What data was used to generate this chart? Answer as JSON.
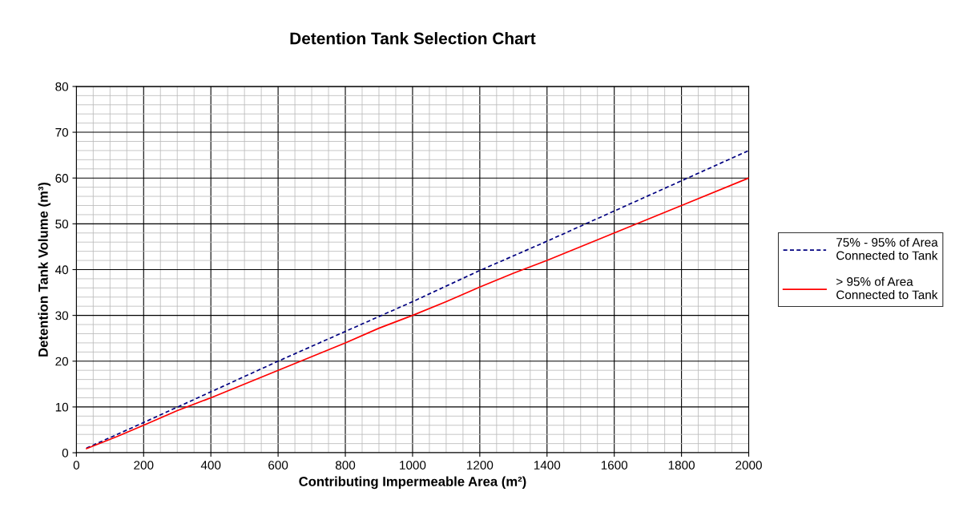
{
  "chart_data": {
    "type": "line",
    "title": "Detention Tank Selection Chart",
    "xlabel": "Contributing Impermeable Area (m²)",
    "ylabel": "Detention Tank Volume (m³)",
    "series": [
      {
        "name": "75% - 95% of Area\nConnected to Tank",
        "color": "#000080",
        "line_style": "dashed",
        "x": [
          30,
          200,
          400,
          600,
          800,
          1000,
          1200,
          1400,
          1500,
          1600,
          1800,
          2000
        ],
        "values": [
          1.0,
          6.6,
          13.3,
          20.0,
          26.5,
          33.0,
          39.8,
          46.2,
          49.5,
          52.8,
          59.4,
          66.0
        ]
      },
      {
        "name": "> 95% of Area\nConnected to Tank",
        "color": "#ff0000",
        "line_style": "solid",
        "x": [
          30,
          120,
          200,
          300,
          400,
          600,
          800,
          900,
          1000,
          1100,
          1200,
          1300,
          1400,
          1600,
          1800,
          2000
        ],
        "values": [
          0.9,
          3.5,
          6.0,
          9.2,
          12.0,
          18.0,
          24.0,
          27.2,
          30.0,
          33.0,
          36.2,
          39.2,
          42.0,
          48.0,
          54.0,
          60.0
        ]
      }
    ],
    "xlim": [
      0,
      2000
    ],
    "xticks": [
      0,
      200,
      400,
      600,
      800,
      1000,
      1200,
      1400,
      1600,
      1800,
      2000
    ],
    "ylim": [
      0,
      80
    ],
    "yticks": [
      0,
      10,
      20,
      30,
      40,
      50,
      60,
      70,
      80
    ],
    "grid": true,
    "legend": "right",
    "marker": "none"
  }
}
